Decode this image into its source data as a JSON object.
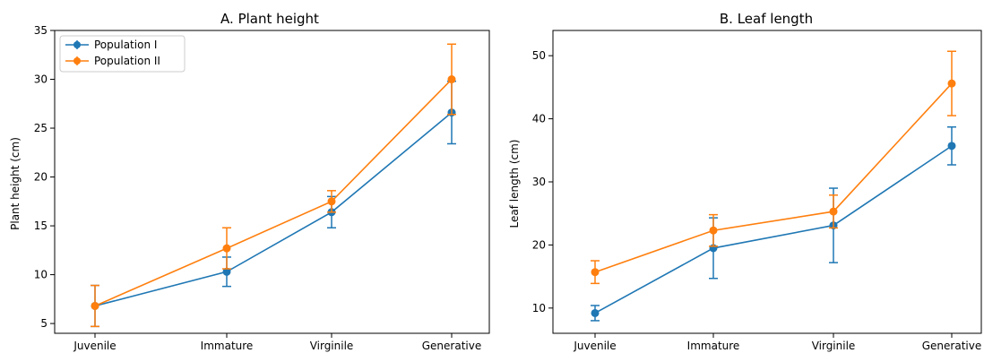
{
  "chart_data": [
    {
      "type": "line",
      "title": "A. Plant height",
      "xlabel": "",
      "ylabel": "Plant height (cm)",
      "categories": [
        "Juvenile",
        "Immature",
        "Virginile",
        "Generative"
      ],
      "ylim": [
        4,
        35
      ],
      "yticks": [
        5,
        10,
        15,
        20,
        25,
        30,
        35
      ],
      "grid": false,
      "legend_position": "top-left",
      "series": [
        {
          "name": "Population I",
          "color": "#1f77b4",
          "values": [
            6.8,
            10.3,
            16.4,
            26.6
          ],
          "errors": [
            2.1,
            1.5,
            1.6,
            3.2
          ]
        },
        {
          "name": "Population II",
          "color": "#ff7f0e",
          "values": [
            6.8,
            12.7,
            17.5,
            30.0
          ],
          "errors": [
            2.1,
            2.1,
            1.1,
            3.6
          ]
        }
      ]
    },
    {
      "type": "line",
      "title": "B. Leaf length",
      "xlabel": "",
      "ylabel": "Leaf length (cm)",
      "categories": [
        "Juvenile",
        "Immature",
        "Virginile",
        "Generative"
      ],
      "ylim": [
        6,
        54
      ],
      "yticks": [
        10,
        20,
        30,
        40,
        50
      ],
      "grid": false,
      "series": [
        {
          "name": "Population I",
          "color": "#1f77b4",
          "values": [
            9.2,
            19.5,
            23.1,
            35.7
          ],
          "errors": [
            1.2,
            4.8,
            5.9,
            3.0
          ]
        },
        {
          "name": "Population II",
          "color": "#ff7f0e",
          "values": [
            15.7,
            22.3,
            25.3,
            45.6
          ],
          "errors": [
            1.8,
            2.5,
            2.6,
            5.1
          ]
        }
      ]
    }
  ]
}
